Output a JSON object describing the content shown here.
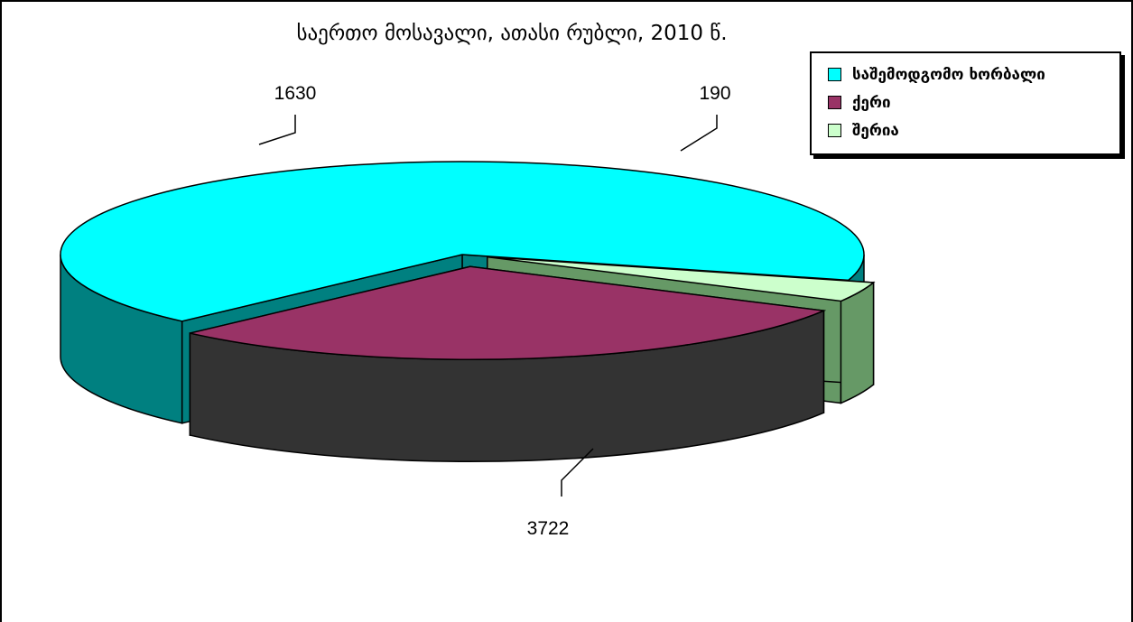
{
  "chart_data": {
    "type": "pie",
    "title": "საერთო მოსავალი, ათასი რუბლი, 2010 წ.",
    "categories": [
      "საშემოდგომო ხორბალი",
      "ქერი",
      "შერია"
    ],
    "values": [
      3722,
      1630,
      190
    ],
    "colors": [
      "#00ffff",
      "#993366",
      "#ccffcc"
    ],
    "side_colors": [
      "#008080",
      "#333333",
      "#669966"
    ],
    "legend_position": "top-right",
    "three_d": true,
    "exploded": true
  }
}
